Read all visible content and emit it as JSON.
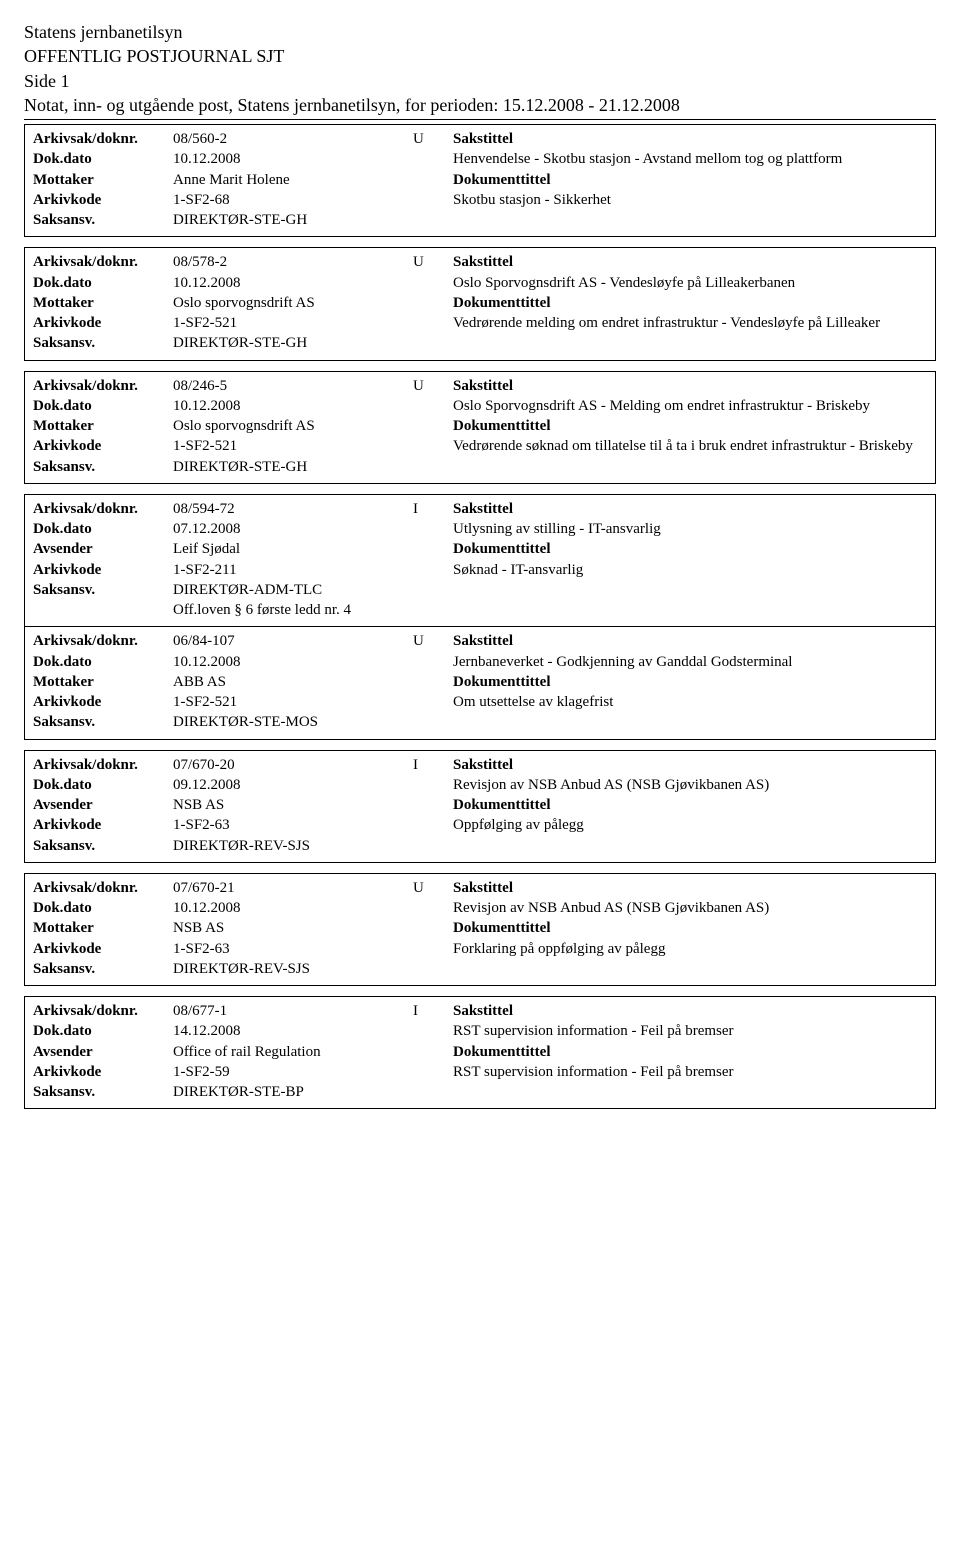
{
  "header": {
    "org": "Statens jernbanetilsyn",
    "title": "OFFENTLIG POSTJOURNAL SJT",
    "page": "Side 1",
    "period": "Notat, inn- og utgående post, Statens jernbanetilsyn, for perioden: 15.12.2008 - 21.12.2008"
  },
  "labels": {
    "arkivsak": "Arkivsak/doknr.",
    "dokdato": "Dok.dato",
    "mottaker": "Mottaker",
    "avsender": "Avsender",
    "arkivkode": "Arkivkode",
    "saksansv": "Saksansv.",
    "sakstittel": "Sakstittel",
    "dokumenttittel": "Dokumenttittel"
  },
  "entries": [
    {
      "doknr": "08/560-2",
      "dir": "U",
      "dokdato": "10.12.2008",
      "party_label": "Mottaker",
      "party": "Anne Marit Holene",
      "arkivkode": "1-SF2-68",
      "saksansv": "DIREKTØR-STE-GH",
      "sakstittel": "Henvendelse - Skotbu stasjon - Avstand mellom tog og plattform",
      "doktittel": "Skotbu stasjon - Sikkerhet",
      "offloven": ""
    },
    {
      "doknr": "08/578-2",
      "dir": "U",
      "dokdato": "10.12.2008",
      "party_label": "Mottaker",
      "party": "Oslo sporvognsdrift AS",
      "arkivkode": "1-SF2-521",
      "saksansv": "DIREKTØR-STE-GH",
      "sakstittel": "Oslo Sporvognsdrift AS - Vendesløyfe på Lilleakerbanen",
      "doktittel": "Vedrørende melding om endret infrastruktur - Vendesløyfe på Lilleaker",
      "offloven": ""
    },
    {
      "doknr": "08/246-5",
      "dir": "U",
      "dokdato": "10.12.2008",
      "party_label": "Mottaker",
      "party": "Oslo sporvognsdrift AS",
      "arkivkode": "1-SF2-521",
      "saksansv": "DIREKTØR-STE-GH",
      "sakstittel": "Oslo Sporvognsdrift AS - Melding om endret infrastruktur - Briskeby",
      "doktittel": "Vedrørende søknad om tillatelse til å ta i bruk endret infrastruktur - Briskeby",
      "offloven": ""
    },
    {
      "doknr": "08/594-72",
      "dir": "I",
      "dokdato": "07.12.2008",
      "party_label": "Avsender",
      "party": "Leif Sjødal",
      "arkivkode": "1-SF2-211",
      "saksansv": "DIREKTØR-ADM-TLC",
      "sakstittel": "Utlysning av stilling - IT-ansvarlig",
      "doktittel": "Søknad - IT-ansvarlig",
      "offloven": "Off.loven § 6 første ledd nr. 4"
    },
    {
      "doknr": "06/84-107",
      "dir": "U",
      "dokdato": "10.12.2008",
      "party_label": "Mottaker",
      "party": "ABB AS",
      "arkivkode": "1-SF2-521",
      "saksansv": "DIREKTØR-STE-MOS",
      "sakstittel": "Jernbaneverket - Godkjenning av Ganddal Godsterminal",
      "doktittel": "Om utsettelse av klagefrist",
      "offloven": ""
    },
    {
      "doknr": "07/670-20",
      "dir": "I",
      "dokdato": "09.12.2008",
      "party_label": "Avsender",
      "party": "NSB AS",
      "arkivkode": "1-SF2-63",
      "saksansv": "DIREKTØR-REV-SJS",
      "sakstittel": "Revisjon av NSB Anbud AS (NSB Gjøvikbanen AS)",
      "doktittel": "Oppfølging av pålegg",
      "offloven": ""
    },
    {
      "doknr": "07/670-21",
      "dir": "U",
      "dokdato": "10.12.2008",
      "party_label": "Mottaker",
      "party": "NSB AS",
      "arkivkode": "1-SF2-63",
      "saksansv": "DIREKTØR-REV-SJS",
      "sakstittel": "Revisjon av NSB Anbud AS (NSB Gjøvikbanen AS)",
      "doktittel": "Forklaring på oppfølging av pålegg",
      "offloven": ""
    },
    {
      "doknr": "08/677-1",
      "dir": "I",
      "dokdato": "14.12.2008",
      "party_label": "Avsender",
      "party": "Office of rail Regulation",
      "arkivkode": "1-SF2-59",
      "saksansv": "DIREKTØR-STE-BP",
      "sakstittel": "RST supervision information - Feil på bremser",
      "doktittel": "RST supervision information - Feil på bremser",
      "offloven": ""
    }
  ]
}
